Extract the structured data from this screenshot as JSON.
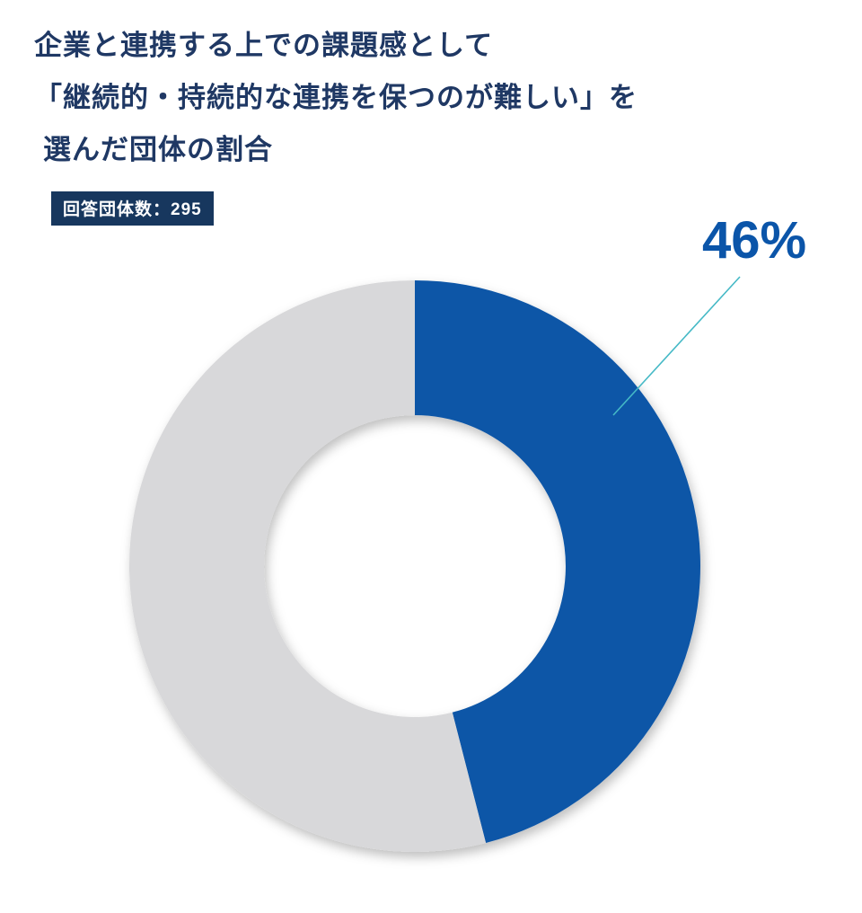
{
  "title": {
    "line1": "企業と連携する上での課題感として",
    "line2": "「継続的・持続的な連携を保つのが難しい」を",
    "line3": "選んだ団体の割合"
  },
  "badge": {
    "label": "回答団体数：295"
  },
  "colors": {
    "page_bg": "#ffffff",
    "title_text": "#1f3864",
    "badge_bg": "#17375e",
    "badge_text": "#ffffff",
    "percentage_label": "#0b55a9",
    "leader_line": "#45b9c6",
    "selected_slice": "#0e56a7",
    "other_slice": "#d8d8da"
  },
  "chart_data": {
    "type": "pie",
    "donut": true,
    "title": "企業と連携する上での課題感として「継続的・持続的な連携を保つのが難しい」を選んだ団体の割合",
    "subtitle": "回答団体数：295",
    "respondent_count": 295,
    "categories": [
      "selected",
      "other"
    ],
    "values": [
      46,
      54
    ],
    "unit": "%",
    "data_label": "46%",
    "slice_colors": [
      "#0e56a7",
      "#d8d8da"
    ],
    "start_angle_deg": 0,
    "direction": "clockwise",
    "legend": "none"
  }
}
